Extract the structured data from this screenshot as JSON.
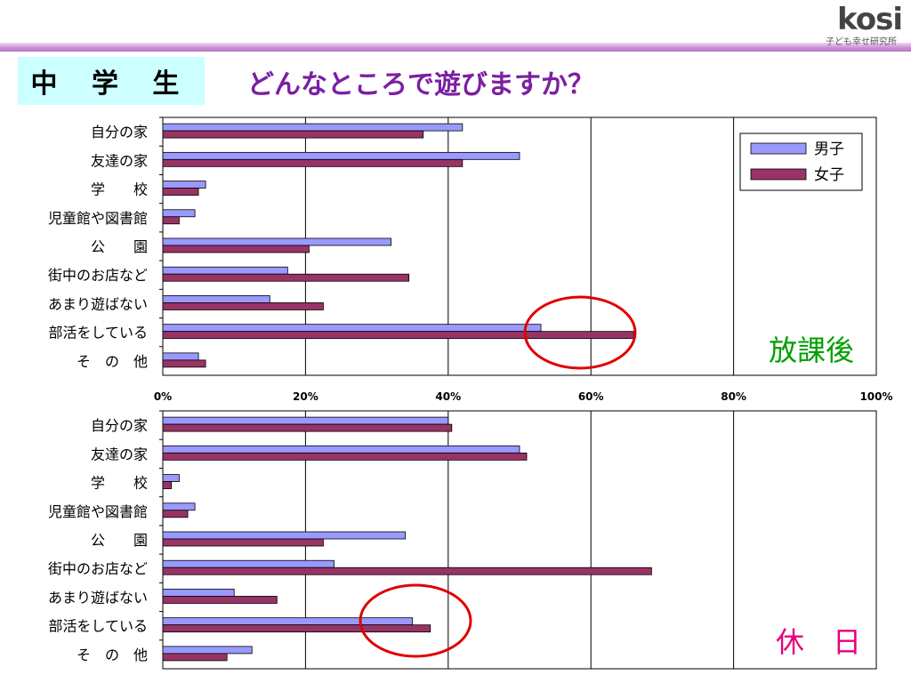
{
  "logo": {
    "mark": "kosi",
    "subtitle": "子ども幸せ研究所"
  },
  "header": {
    "badge": "中 学 生",
    "question": "どんなところで遊びますか？"
  },
  "legend": {
    "male": "男子",
    "female": "女子"
  },
  "colors": {
    "male": "#9999ff",
    "female": "#993366",
    "circle": "#e00000",
    "panel1_label": "#00a000",
    "panel2_label": "#e6007e"
  },
  "chart_data": [
    {
      "type": "bar",
      "orientation": "horizontal",
      "panel_label": "放課後",
      "categories": [
        "自分の家",
        "友達の家",
        "学　　校",
        "児童館や図書館",
        "公　　園",
        "街中のお店など",
        "あまり遊ばない",
        "部活をしている",
        "そ　の　他"
      ],
      "series": [
        {
          "name": "男子",
          "values": [
            42,
            50,
            6,
            4.5,
            32,
            17.5,
            15,
            53,
            5
          ]
        },
        {
          "name": "女子",
          "values": [
            36.5,
            42,
            5,
            2.3,
            20.5,
            34.5,
            22.5,
            66,
            6
          ]
        }
      ],
      "xlim": [
        0,
        100
      ],
      "xticks": [
        "0%",
        "20%",
        "40%",
        "60%",
        "80%",
        "100%"
      ],
      "grid": true,
      "legend_position": "top-right",
      "highlight_category": "部活をしている"
    },
    {
      "type": "bar",
      "orientation": "horizontal",
      "panel_label": "休　日",
      "categories": [
        "自分の家",
        "友達の家",
        "学　　校",
        "児童館や図書館",
        "公　　園",
        "街中のお店など",
        "あまり遊ばない",
        "部活をしている",
        "そ　の　他"
      ],
      "series": [
        {
          "name": "男子",
          "values": [
            40,
            50,
            2.3,
            4.5,
            34,
            24,
            10,
            35,
            12.5
          ]
        },
        {
          "name": "女子",
          "values": [
            40.5,
            51,
            1.2,
            3.5,
            22.5,
            68.5,
            16,
            37.5,
            9
          ]
        }
      ],
      "xlim": [
        0,
        100
      ],
      "grid": true,
      "highlight_category": "部活をしている"
    }
  ]
}
